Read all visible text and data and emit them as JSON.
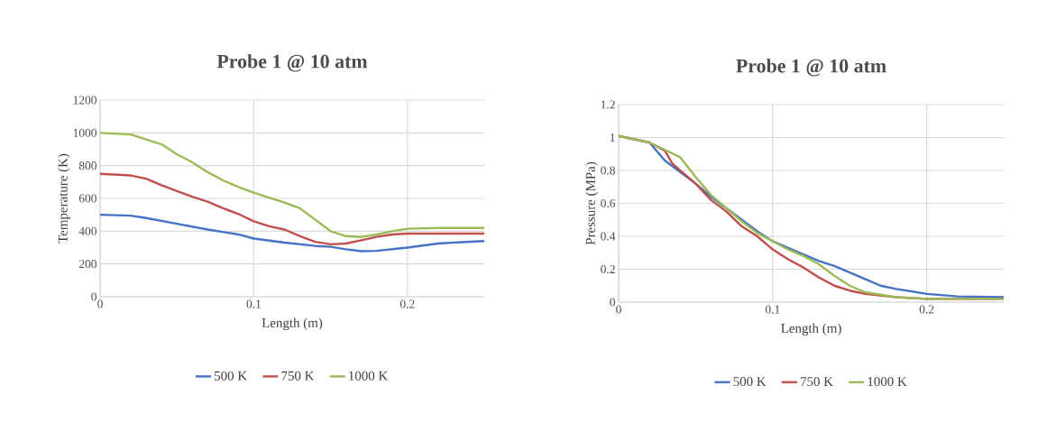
{
  "chart_data": [
    {
      "type": "line",
      "title": "Probe 1 @ 10 atm",
      "xlabel": "Length (m)",
      "ylabel": "Temperature (K)",
      "xlim": [
        0,
        0.25
      ],
      "ylim": [
        0,
        1200
      ],
      "xticks": [
        0,
        0.1,
        0.2
      ],
      "yticks": [
        0,
        200,
        400,
        600,
        800,
        1000,
        1200
      ],
      "grid": true,
      "legend": "bottom",
      "series": [
        {
          "name": "500 K",
          "color": "#4472c4",
          "x": [
            0,
            0.02,
            0.03,
            0.05,
            0.07,
            0.09,
            0.1,
            0.12,
            0.14,
            0.15,
            0.16,
            0.17,
            0.18,
            0.19,
            0.2,
            0.22,
            0.25
          ],
          "values": [
            500,
            495,
            480,
            445,
            410,
            380,
            355,
            330,
            310,
            305,
            290,
            278,
            280,
            290,
            300,
            325,
            340
          ]
        },
        {
          "name": "750 K",
          "color": "#c0504d",
          "x": [
            0,
            0.02,
            0.03,
            0.04,
            0.05,
            0.06,
            0.07,
            0.08,
            0.09,
            0.1,
            0.11,
            0.12,
            0.13,
            0.14,
            0.15,
            0.16,
            0.17,
            0.18,
            0.19,
            0.2,
            0.25
          ],
          "values": [
            750,
            740,
            720,
            680,
            645,
            610,
            580,
            540,
            505,
            460,
            430,
            410,
            370,
            335,
            320,
            325,
            345,
            365,
            380,
            385,
            385
          ]
        },
        {
          "name": "1000 K",
          "color": "#9bbb59",
          "x": [
            0,
            0.02,
            0.04,
            0.05,
            0.06,
            0.07,
            0.08,
            0.09,
            0.1,
            0.11,
            0.12,
            0.13,
            0.14,
            0.15,
            0.16,
            0.17,
            0.18,
            0.19,
            0.2,
            0.22,
            0.25
          ],
          "values": [
            1000,
            990,
            930,
            870,
            820,
            760,
            710,
            670,
            635,
            605,
            575,
            540,
            470,
            400,
            370,
            365,
            380,
            400,
            415,
            420,
            420
          ]
        }
      ]
    },
    {
      "type": "line",
      "title": "Probe 1 @ 10 atm",
      "xlabel": "Length (m)",
      "ylabel": "Pressure (MPa)",
      "xlim": [
        0,
        0.25
      ],
      "ylim": [
        0,
        1.2
      ],
      "xticks": [
        0,
        0.1,
        0.2
      ],
      "yticks": [
        0,
        0.2,
        0.4,
        0.6,
        0.8,
        1,
        1.2
      ],
      "grid": true,
      "legend": "bottom",
      "series": [
        {
          "name": "500 K",
          "color": "#4472c4",
          "x": [
            0,
            0.02,
            0.03,
            0.04,
            0.05,
            0.06,
            0.07,
            0.08,
            0.09,
            0.1,
            0.11,
            0.12,
            0.13,
            0.14,
            0.15,
            0.16,
            0.17,
            0.18,
            0.2,
            0.22,
            0.25
          ],
          "values": [
            1.01,
            0.97,
            0.86,
            0.79,
            0.72,
            0.64,
            0.57,
            0.5,
            0.43,
            0.37,
            0.33,
            0.29,
            0.25,
            0.22,
            0.18,
            0.14,
            0.1,
            0.08,
            0.05,
            0.035,
            0.03
          ]
        },
        {
          "name": "750 K",
          "color": "#c0504d",
          "x": [
            0,
            0.02,
            0.03,
            0.035,
            0.05,
            0.06,
            0.07,
            0.08,
            0.09,
            0.1,
            0.11,
            0.12,
            0.13,
            0.14,
            0.15,
            0.16,
            0.18,
            0.2,
            0.25
          ],
          "values": [
            1.01,
            0.97,
            0.92,
            0.84,
            0.72,
            0.62,
            0.55,
            0.46,
            0.4,
            0.32,
            0.26,
            0.21,
            0.15,
            0.1,
            0.07,
            0.05,
            0.03,
            0.02,
            0.02
          ]
        },
        {
          "name": "1000 K",
          "color": "#9bbb59",
          "x": [
            0,
            0.02,
            0.04,
            0.05,
            0.06,
            0.07,
            0.08,
            0.09,
            0.1,
            0.11,
            0.12,
            0.13,
            0.14,
            0.15,
            0.16,
            0.18,
            0.2,
            0.25
          ],
          "values": [
            1.01,
            0.97,
            0.88,
            0.76,
            0.65,
            0.57,
            0.49,
            0.42,
            0.37,
            0.32,
            0.28,
            0.23,
            0.16,
            0.1,
            0.06,
            0.03,
            0.02,
            0.02
          ]
        }
      ]
    }
  ]
}
